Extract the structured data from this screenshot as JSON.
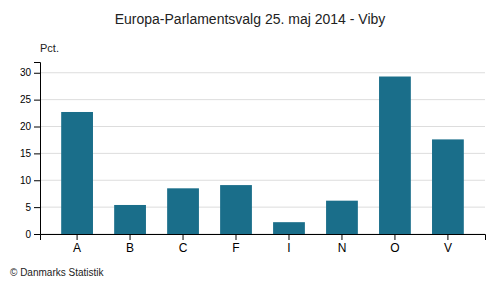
{
  "chart_data": {
    "type": "bar",
    "title": "Europa-Parlamentsvalg 25. maj 2014 - Viby",
    "y_label": "Pct.",
    "annotations": [
      "© Danmarks Statistik"
    ],
    "categories": [
      "A",
      "B",
      "C",
      "F",
      "I",
      "N",
      "O",
      "V"
    ],
    "values": [
      22.7,
      5.4,
      8.5,
      9.1,
      2.2,
      6.2,
      29.3,
      17.6
    ],
    "color": "#1a6e8a",
    "ylim": [
      0,
      32
    ],
    "yticks": [
      0,
      5,
      10,
      15,
      20,
      25,
      30
    ],
    "grid": true
  }
}
